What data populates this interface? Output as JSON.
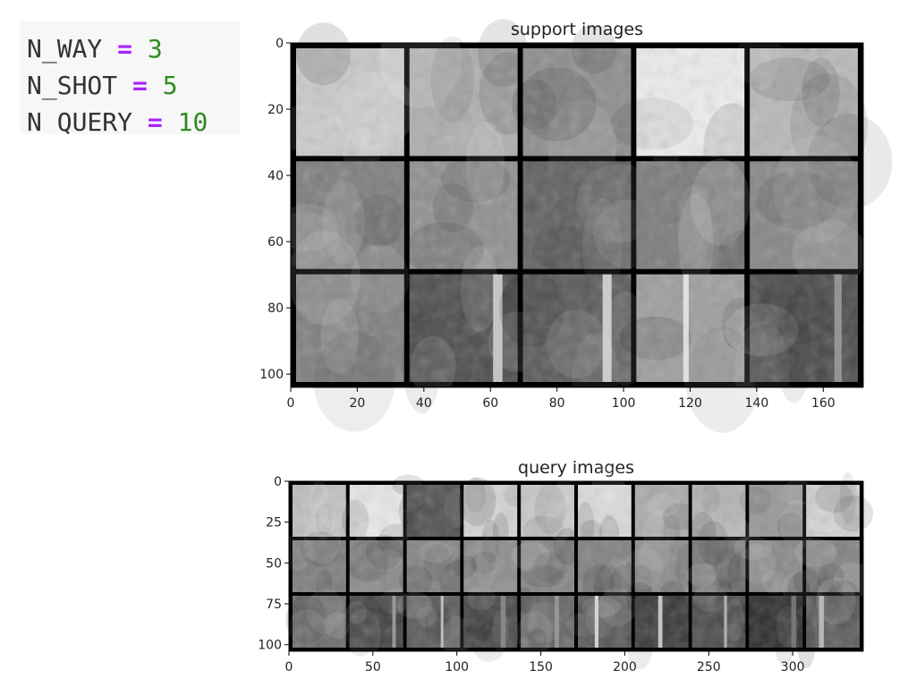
{
  "code": {
    "lines": [
      {
        "name": "N_WAY",
        "op": "=",
        "value": "3"
      },
      {
        "name": "N_SHOT",
        "op": "=",
        "value": "5"
      },
      {
        "name": "N QUERY",
        "op": "=",
        "value": "10"
      }
    ]
  },
  "chart_data": [
    {
      "type": "image_grid",
      "title": "support images",
      "xlim": [
        0,
        172
      ],
      "ylim": [
        104,
        0
      ],
      "xticks": [
        0,
        20,
        40,
        60,
        80,
        100,
        120,
        140,
        160
      ],
      "yticks": [
        0,
        20,
        40,
        60,
        80,
        100
      ],
      "rows": 3,
      "cols": 5,
      "tiles": [
        [
          {
            "tone": "#c8c8c8",
            "streak": ""
          },
          {
            "tone": "#adadad",
            "streak": ""
          },
          {
            "tone": "#8c8c8c",
            "streak": ""
          },
          {
            "tone": "#ececec",
            "streak": ""
          },
          {
            "tone": "#b8b8b8",
            "streak": ""
          }
        ],
        [
          {
            "tone": "#7d7d7d",
            "streak": ""
          },
          {
            "tone": "#8e8e8e",
            "streak": ""
          },
          {
            "tone": "#5e5e5e",
            "streak": ""
          },
          {
            "tone": "#7a7a7a",
            "streak": ""
          },
          {
            "tone": "#858585",
            "streak": ""
          }
        ],
        [
          {
            "tone": "#7e7e7e",
            "streak": ""
          },
          {
            "tone": "#4c4c4c",
            "streak": "#cfcfcf"
          },
          {
            "tone": "#585858",
            "streak": "#d6d6d6"
          },
          {
            "tone": "#9d9d9d",
            "streak": "#e6e6e6"
          },
          {
            "tone": "#4a4a4a",
            "streak": "#9a9a9a"
          }
        ]
      ]
    },
    {
      "type": "image_grid",
      "title": "query images",
      "xlim": [
        0,
        342
      ],
      "ylim": [
        104,
        0
      ],
      "xticks": [
        0,
        50,
        100,
        150,
        200,
        250,
        300
      ],
      "yticks": [
        0,
        25,
        50,
        75,
        100
      ],
      "rows": 3,
      "cols": 10,
      "tiles": [
        [
          {
            "tone": "#bdbdbd",
            "streak": ""
          },
          {
            "tone": "#e6e6e6",
            "streak": ""
          },
          {
            "tone": "#4e4e4e",
            "streak": ""
          },
          {
            "tone": "#d3d3d3",
            "streak": ""
          },
          {
            "tone": "#c7c7c7",
            "streak": ""
          },
          {
            "tone": "#dadada",
            "streak": ""
          },
          {
            "tone": "#a9a9a9",
            "streak": ""
          },
          {
            "tone": "#b3b3b3",
            "streak": ""
          },
          {
            "tone": "#969696",
            "streak": ""
          },
          {
            "tone": "#d1d1d1",
            "streak": ""
          }
        ],
        [
          {
            "tone": "#7c7c7c",
            "streak": ""
          },
          {
            "tone": "#888888",
            "streak": ""
          },
          {
            "tone": "#828282",
            "streak": ""
          },
          {
            "tone": "#8c8c8c",
            "streak": ""
          },
          {
            "tone": "#858585",
            "streak": ""
          },
          {
            "tone": "#7f7f7f",
            "streak": ""
          },
          {
            "tone": "#8a8a8a",
            "streak": ""
          },
          {
            "tone": "#777777",
            "streak": ""
          },
          {
            "tone": "#868686",
            "streak": ""
          },
          {
            "tone": "#808080",
            "streak": ""
          }
        ],
        [
          {
            "tone": "#6a6a6a",
            "streak": ""
          },
          {
            "tone": "#3f3f3f",
            "streak": "#a0a0a0"
          },
          {
            "tone": "#5a5a5a",
            "streak": "#c8c8c8"
          },
          {
            "tone": "#474747",
            "streak": "#8c8c8c"
          },
          {
            "tone": "#626262",
            "streak": "#9a9a9a"
          },
          {
            "tone": "#555555",
            "streak": "#dcdcdc"
          },
          {
            "tone": "#3c3c3c",
            "streak": "#d2d2d2"
          },
          {
            "tone": "#4a4a4a",
            "streak": "#b4b4b4"
          },
          {
            "tone": "#2e2e2e",
            "streak": "#7a7a7a"
          },
          {
            "tone": "#5e5e5e",
            "streak": "#bebebe"
          }
        ]
      ]
    }
  ]
}
